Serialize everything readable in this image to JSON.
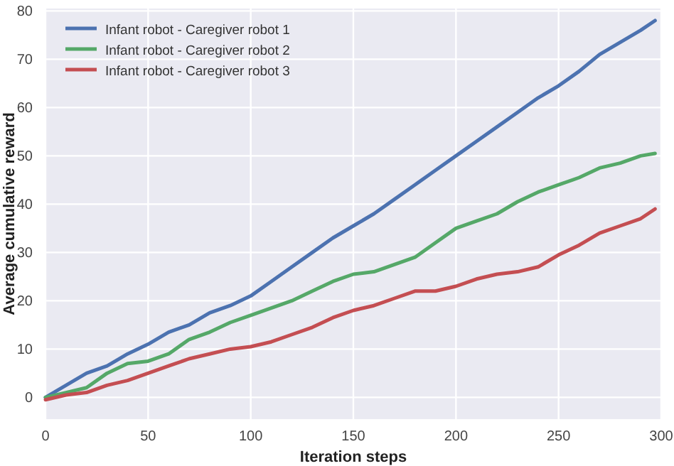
{
  "chart_data": {
    "type": "line",
    "xlabel": "Iteration steps",
    "ylabel": "Average cumulative reward",
    "x": [
      0,
      10,
      20,
      30,
      40,
      50,
      60,
      70,
      80,
      90,
      100,
      110,
      120,
      130,
      140,
      150,
      160,
      170,
      180,
      190,
      200,
      210,
      220,
      230,
      240,
      250,
      260,
      270,
      280,
      290,
      297
    ],
    "series": [
      {
        "name": "Infant robot - Caregiver robot 1",
        "color": "#4c72b0",
        "values": [
          0,
          2.5,
          5,
          6.5,
          9,
          11,
          13.5,
          15,
          17.5,
          19,
          21,
          24,
          27,
          30,
          33,
          35.5,
          38,
          41,
          44,
          47,
          50,
          53,
          56,
          59,
          62,
          64.5,
          67.5,
          71,
          73.5,
          76,
          78
        ]
      },
      {
        "name": "Infant robot - Caregiver robot 2",
        "color": "#55a868",
        "values": [
          0,
          1,
          2,
          5,
          7,
          7.5,
          9,
          12,
          13.5,
          15.5,
          17,
          18.5,
          20,
          22,
          24,
          25.5,
          26,
          27.5,
          29,
          32,
          35,
          36.5,
          38,
          40.5,
          42.5,
          44,
          45.5,
          47.5,
          48.5,
          50,
          50.5
        ]
      },
      {
        "name": "Infant robot - Caregiver robot 3",
        "color": "#c44e52",
        "values": [
          -0.5,
          0.5,
          1,
          2.5,
          3.5,
          5,
          6.5,
          8,
          9,
          10,
          10.5,
          11.5,
          13,
          14.5,
          16.5,
          18,
          19,
          20.5,
          22,
          22,
          23,
          24.5,
          25.5,
          26,
          27,
          29.5,
          31.5,
          34,
          35.5,
          37,
          39
        ]
      }
    ],
    "xlim": [
      0,
      300
    ],
    "xticks": [
      0,
      50,
      100,
      150,
      200,
      250,
      300
    ],
    "ylim": [
      -4.5,
      80.5
    ],
    "yticks": [
      0,
      10,
      20,
      30,
      40,
      50,
      60,
      70,
      80
    ],
    "grid": true,
    "legend": "top left",
    "marker": "none",
    "line_style": "solid"
  }
}
